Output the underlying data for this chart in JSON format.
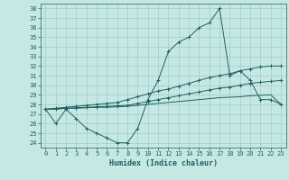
{
  "x": [
    0,
    1,
    2,
    3,
    4,
    5,
    6,
    7,
    8,
    9,
    10,
    11,
    12,
    13,
    14,
    15,
    16,
    17,
    18,
    19,
    20,
    21,
    22,
    23
  ],
  "line_main": [
    27.5,
    26.0,
    27.5,
    26.5,
    25.5,
    25.0,
    24.5,
    24.0,
    24.0,
    25.5,
    28.5,
    30.5,
    33.5,
    34.5,
    35.0,
    36.0,
    36.5,
    38.0,
    31.0,
    31.5,
    30.5,
    28.5,
    28.5,
    28.0
  ],
  "line_upper": [
    27.5,
    27.6,
    27.7,
    27.8,
    27.9,
    28.0,
    28.1,
    28.2,
    28.5,
    28.8,
    29.1,
    29.4,
    29.6,
    29.9,
    30.2,
    30.5,
    30.8,
    31.0,
    31.2,
    31.5,
    31.7,
    31.9,
    32.0,
    32.0
  ],
  "line_mid": [
    27.5,
    27.55,
    27.6,
    27.65,
    27.7,
    27.75,
    27.8,
    27.85,
    27.9,
    28.1,
    28.3,
    28.5,
    28.7,
    28.9,
    29.1,
    29.3,
    29.5,
    29.7,
    29.8,
    30.0,
    30.2,
    30.3,
    30.4,
    30.5
  ],
  "line_lower": [
    27.5,
    27.5,
    27.6,
    27.6,
    27.65,
    27.7,
    27.7,
    27.75,
    27.8,
    27.9,
    28.0,
    28.1,
    28.2,
    28.3,
    28.4,
    28.5,
    28.6,
    28.7,
    28.75,
    28.8,
    28.9,
    28.95,
    29.0,
    28.0
  ],
  "bg_color": "#c5e8e5",
  "line_color": "#206060",
  "grid_color": "#a0ccca",
  "xlabel": "Humidex (Indice chaleur)",
  "xlim": [
    -0.5,
    23.5
  ],
  "ylim": [
    23.5,
    38.5
  ],
  "yticks": [
    24,
    25,
    26,
    27,
    28,
    29,
    30,
    31,
    32,
    33,
    34,
    35,
    36,
    37,
    38
  ],
  "xticks": [
    0,
    1,
    2,
    3,
    4,
    5,
    6,
    7,
    8,
    9,
    10,
    11,
    12,
    13,
    14,
    15,
    16,
    17,
    18,
    19,
    20,
    21,
    22,
    23
  ]
}
